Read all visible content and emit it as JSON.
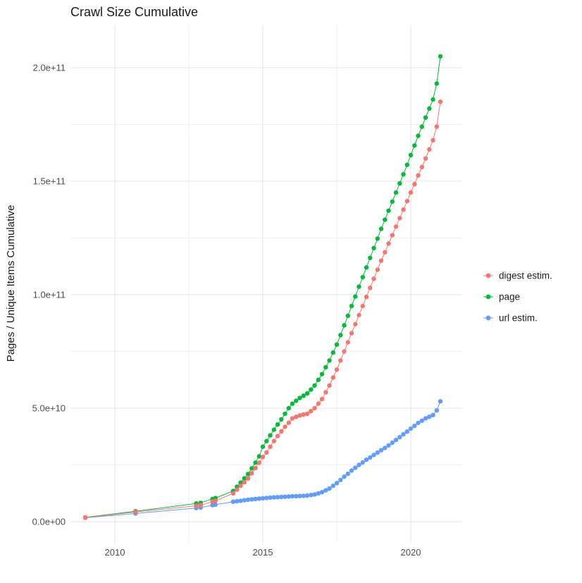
{
  "chart_data": {
    "type": "scatter",
    "title": "Crawl Size Cumulative",
    "xlabel": "",
    "ylabel": "Pages / Unique Items Cumulative",
    "legend_position": "right",
    "grid": true,
    "background_color": "#FFFFFF",
    "grid_major_color": "#E4E4E4",
    "grid_minor_color": "#F1F1F1",
    "axis_text_color": "#4D4D4D",
    "x_range_years": [
      2008.5,
      2021.75
    ],
    "y_range": [
      0,
      219000000000.0
    ],
    "x_ticks": [
      {
        "value": 2010,
        "label": "2010"
      },
      {
        "value": 2015,
        "label": "2015"
      },
      {
        "value": 2020,
        "label": "2020"
      }
    ],
    "x_minor_ticks": [
      2012.5,
      2017.5
    ],
    "y_ticks": [
      {
        "value_billions": 0,
        "label": "0.0e+00"
      },
      {
        "value_billions": 50,
        "label": "5.0e+10"
      },
      {
        "value_billions": 100,
        "label": "1.0e+11"
      },
      {
        "value_billions": 150,
        "label": "1.5e+11"
      },
      {
        "value_billions": 200,
        "label": "2.0e+11"
      }
    ],
    "y_minor_ticks_billions": [
      25,
      75,
      125,
      175
    ],
    "value_unit_note": "values_billions are cumulative counts in units of 10^9 (1e9) pages / unique items",
    "x_years": [
      2009.0,
      2010.7,
      2012.75,
      2012.9,
      2013.3,
      2013.4,
      2014.0,
      2014.125,
      2014.25,
      2014.375,
      2014.5,
      2014.625,
      2014.75,
      2014.875,
      2015.0,
      2015.125,
      2015.25,
      2015.375,
      2015.5,
      2015.625,
      2015.75,
      2015.875,
      2016.0,
      2016.125,
      2016.25,
      2016.375,
      2016.5,
      2016.625,
      2016.75,
      2016.875,
      2017.0,
      2017.125,
      2017.25,
      2017.375,
      2017.5,
      2017.625,
      2017.75,
      2017.875,
      2018.0,
      2018.125,
      2018.25,
      2018.375,
      2018.5,
      2018.625,
      2018.75,
      2018.875,
      2019.0,
      2019.125,
      2019.25,
      2019.375,
      2019.5,
      2019.625,
      2019.75,
      2019.875,
      2020.0,
      2020.125,
      2020.25,
      2020.375,
      2020.5,
      2020.625,
      2020.75,
      2020.875,
      2021.0
    ],
    "series": [
      {
        "name": "digest estim.",
        "color": "#F8766D",
        "values_billions": [
          1.8,
          4.3,
          7.0,
          7.3,
          8.8,
          9.2,
          12.5,
          14.1,
          15.8,
          17.4,
          19.0,
          21.3,
          23.6,
          26.0,
          28.5,
          30.5,
          33.0,
          35.5,
          37.7,
          39.8,
          41.8,
          43.6,
          45.5,
          46.2,
          46.8,
          47.2,
          47.5,
          48.7,
          50.0,
          52.0,
          54.0,
          57.0,
          60.0,
          63.5,
          67.0,
          71.0,
          75.0,
          79.0,
          83.0,
          87.0,
          91.0,
          95.0,
          99.0,
          103.0,
          107.0,
          111.0,
          115.0,
          118.7,
          122.5,
          126.2,
          130.0,
          133.7,
          137.5,
          141.2,
          145.0,
          148.7,
          152.5,
          156.2,
          160.0,
          164.0,
          168.0,
          174.0,
          185.0
        ]
      },
      {
        "name": "page",
        "color": "#00BA38",
        "values_billions": [
          1.9,
          4.6,
          8.0,
          8.3,
          10.0,
          10.4,
          13.5,
          15.4,
          17.2,
          19.1,
          21.0,
          23.5,
          26.0,
          28.8,
          33.0,
          35.5,
          38.0,
          40.5,
          42.8,
          45.1,
          47.5,
          50.0,
          52.0,
          53.3,
          54.5,
          55.5,
          56.5,
          58.2,
          60.0,
          62.5,
          65.0,
          68.0,
          71.0,
          74.5,
          78.0,
          82.2,
          86.5,
          90.7,
          95.0,
          99.2,
          103.5,
          107.7,
          112.0,
          116.2,
          120.5,
          124.7,
          129.0,
          133.0,
          137.0,
          141.0,
          145.0,
          149.0,
          153.0,
          157.2,
          161.5,
          165.7,
          170.0,
          174.0,
          178.0,
          182.0,
          186.0,
          193.0,
          205.0
        ]
      },
      {
        "name": "url estim.",
        "color": "#619CFF",
        "values_billions": [
          1.7,
          3.6,
          6.0,
          6.2,
          7.3,
          7.5,
          8.8,
          9.0,
          9.2,
          9.45,
          9.7,
          9.85,
          10.0,
          10.15,
          10.3,
          10.45,
          10.6,
          10.7,
          10.8,
          10.9,
          11.0,
          11.1,
          11.2,
          11.25,
          11.3,
          11.4,
          11.5,
          11.75,
          12.0,
          12.5,
          13.0,
          13.8,
          14.6,
          15.8,
          17.0,
          18.4,
          19.8,
          21.1,
          22.5,
          23.75,
          25.0,
          26.1,
          27.3,
          28.3,
          29.4,
          30.4,
          31.5,
          32.5,
          33.6,
          34.8,
          36.0,
          37.2,
          38.5,
          39.7,
          41.0,
          42.2,
          43.5,
          44.5,
          45.5,
          46.2,
          47.0,
          49.0,
          53.0
        ]
      }
    ]
  }
}
